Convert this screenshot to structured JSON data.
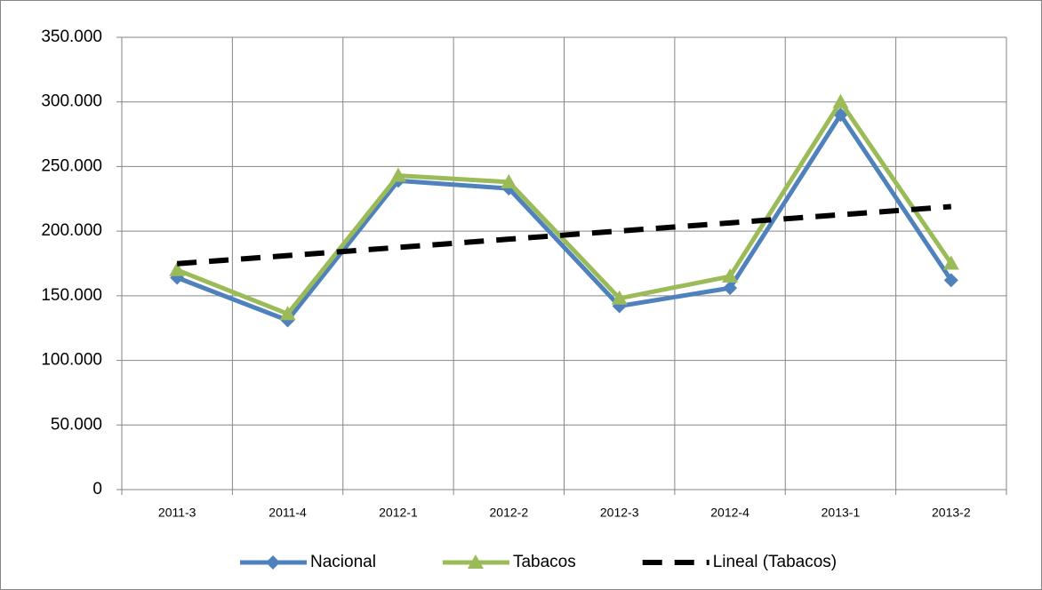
{
  "chart_data": {
    "type": "line",
    "categories": [
      "2011-3",
      "2011-4",
      "2012-1",
      "2012-2",
      "2012-3",
      "2012-4",
      "2013-1",
      "2013-2"
    ],
    "series": [
      {
        "name": "Nacional",
        "color": "#4f81bd",
        "marker": "diamond",
        "values": [
          164000,
          131000,
          239000,
          233000,
          142000,
          156000,
          290000,
          162000
        ]
      },
      {
        "name": "Tabacos",
        "color": "#9bbb59",
        "marker": "triangle",
        "values": [
          170000,
          136000,
          243000,
          238000,
          148000,
          165000,
          300000,
          175000
        ]
      },
      {
        "name": "Lineal (Tabacos)",
        "color": "#000000",
        "dashed": true,
        "values": [
          174800,
          181100,
          187400,
          193800,
          200100,
          206400,
          212700,
          219000
        ]
      }
    ],
    "ylim": [
      0,
      350000
    ],
    "yticks": [
      0,
      {
        "value": 50000,
        "label": "50.000"
      },
      {
        "value": 100000,
        "label": "100.000"
      },
      {
        "value": 150000,
        "label": "150.000"
      },
      {
        "value": 200000,
        "label": "200.000"
      },
      {
        "value": 250000,
        "label": "250.000"
      },
      {
        "value": 300000,
        "label": "300.000"
      },
      {
        "value": 350000,
        "label": "350.000"
      }
    ],
    "grid": true,
    "legend": "bottom"
  }
}
